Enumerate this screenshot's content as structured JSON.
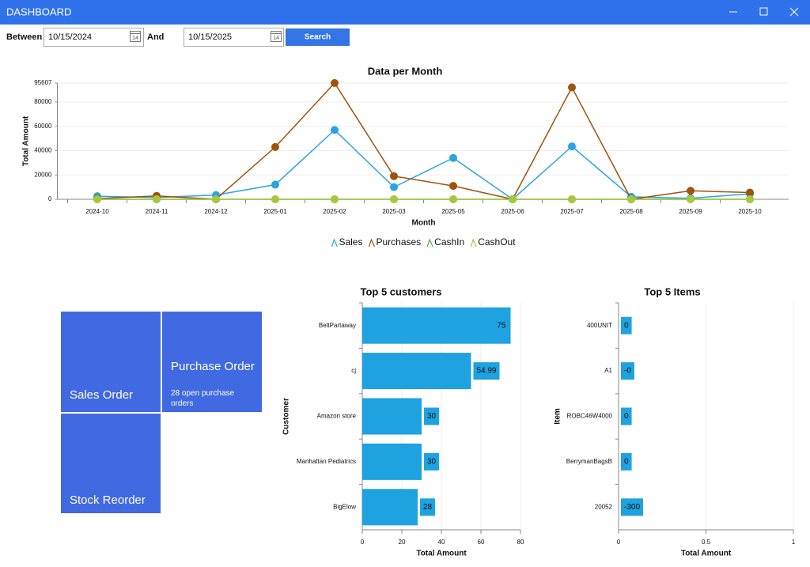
{
  "window": {
    "title": "DASHBOARD"
  },
  "filters": {
    "between_label": "Between",
    "start_date": "10/15/2024",
    "and_label": "And",
    "end_date": "10/15/2025",
    "calendar_day": "14",
    "search_button": "Search"
  },
  "tiles": {
    "sales_order": "Sales Order",
    "purchase_order": "Purchase Order",
    "purchase_order_note": "28 open purchase orders",
    "stock_reorder": "Stock Reorder"
  },
  "chart_data": [
    {
      "type": "line",
      "title": "Data per Month",
      "x_label": "Month",
      "y_label": "Total Amount",
      "categories": [
        "2024-10",
        "2024-11",
        "2024-12",
        "2025-01",
        "2025-02",
        "2025-03",
        "2025-05",
        "2025-06",
        "2025-07",
        "2025-08",
        "2025-09",
        "2025-10"
      ],
      "ylim": [
        0,
        95607
      ],
      "yticks": [
        0,
        20000,
        40000,
        60000,
        80000,
        95607
      ],
      "grid": true,
      "legend": "bottom",
      "series": [
        {
          "name": "Sales",
          "color": "#2aa3e2",
          "values": [
            2500,
            1500,
            3500,
            12000,
            57000,
            10000,
            34000,
            0,
            43500,
            2000,
            800,
            4500
          ]
        },
        {
          "name": "Purchases",
          "color": "#a1520c",
          "values": [
            500,
            2800,
            0,
            43000,
            95607,
            19000,
            11000,
            0,
            92000,
            0,
            7000,
            5500
          ]
        },
        {
          "name": "CashIn",
          "color": "#4caf50",
          "values": [
            0,
            0,
            0,
            0,
            0,
            0,
            0,
            0,
            0,
            0,
            0,
            0
          ]
        },
        {
          "name": "CashOut",
          "color": "#a8c83c",
          "values": [
            0,
            0,
            0,
            0,
            0,
            0,
            0,
            0,
            0,
            0,
            0,
            0
          ]
        }
      ]
    },
    {
      "type": "bar",
      "orientation": "horizontal",
      "title": "Top 5 customers",
      "x_label": "Total Amount",
      "y_label": "Customer",
      "categories": [
        "BeltPartaway",
        "cj",
        "Amazon store",
        "Manhattan Pediatrics",
        "BigElow"
      ],
      "values": [
        75,
        54.99,
        30,
        30,
        28
      ],
      "color": "#1ea2e0",
      "xlim": [
        0,
        80
      ],
      "xticks": [
        0,
        20,
        40,
        60,
        80
      ],
      "grid": true
    },
    {
      "type": "bar",
      "orientation": "horizontal",
      "title": "Top 5 Items",
      "x_label": "Total Amount",
      "y_label": "Item",
      "categories": [
        "400UNIT",
        "A1",
        "ROBC46W4000",
        "BerrymanBagsB",
        "20052"
      ],
      "values": [
        0,
        0,
        0,
        0,
        -300
      ],
      "value_labels": [
        "0",
        "-0",
        "0",
        "0",
        "-300"
      ],
      "color": "#1ea2e0",
      "xlim": [
        0,
        1
      ],
      "xticks": [
        0,
        0.5,
        1
      ],
      "grid": true
    }
  ]
}
